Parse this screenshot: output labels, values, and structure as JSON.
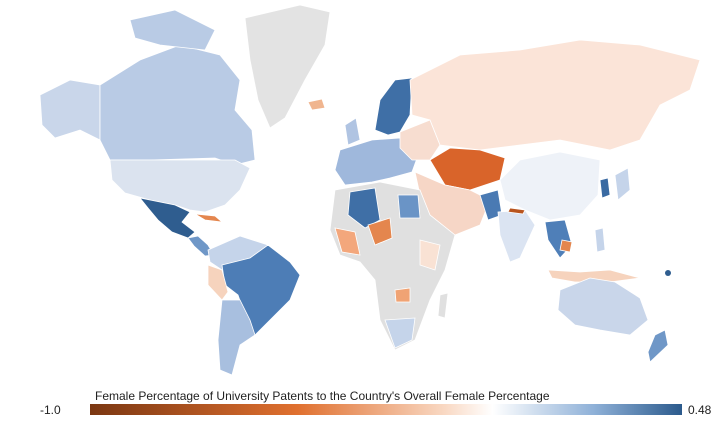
{
  "legend": {
    "title": "Female Percentage of University Patents to the Country's Overall Female Percentage",
    "min_label": "-1.0",
    "max_label": "0.48"
  }
}
